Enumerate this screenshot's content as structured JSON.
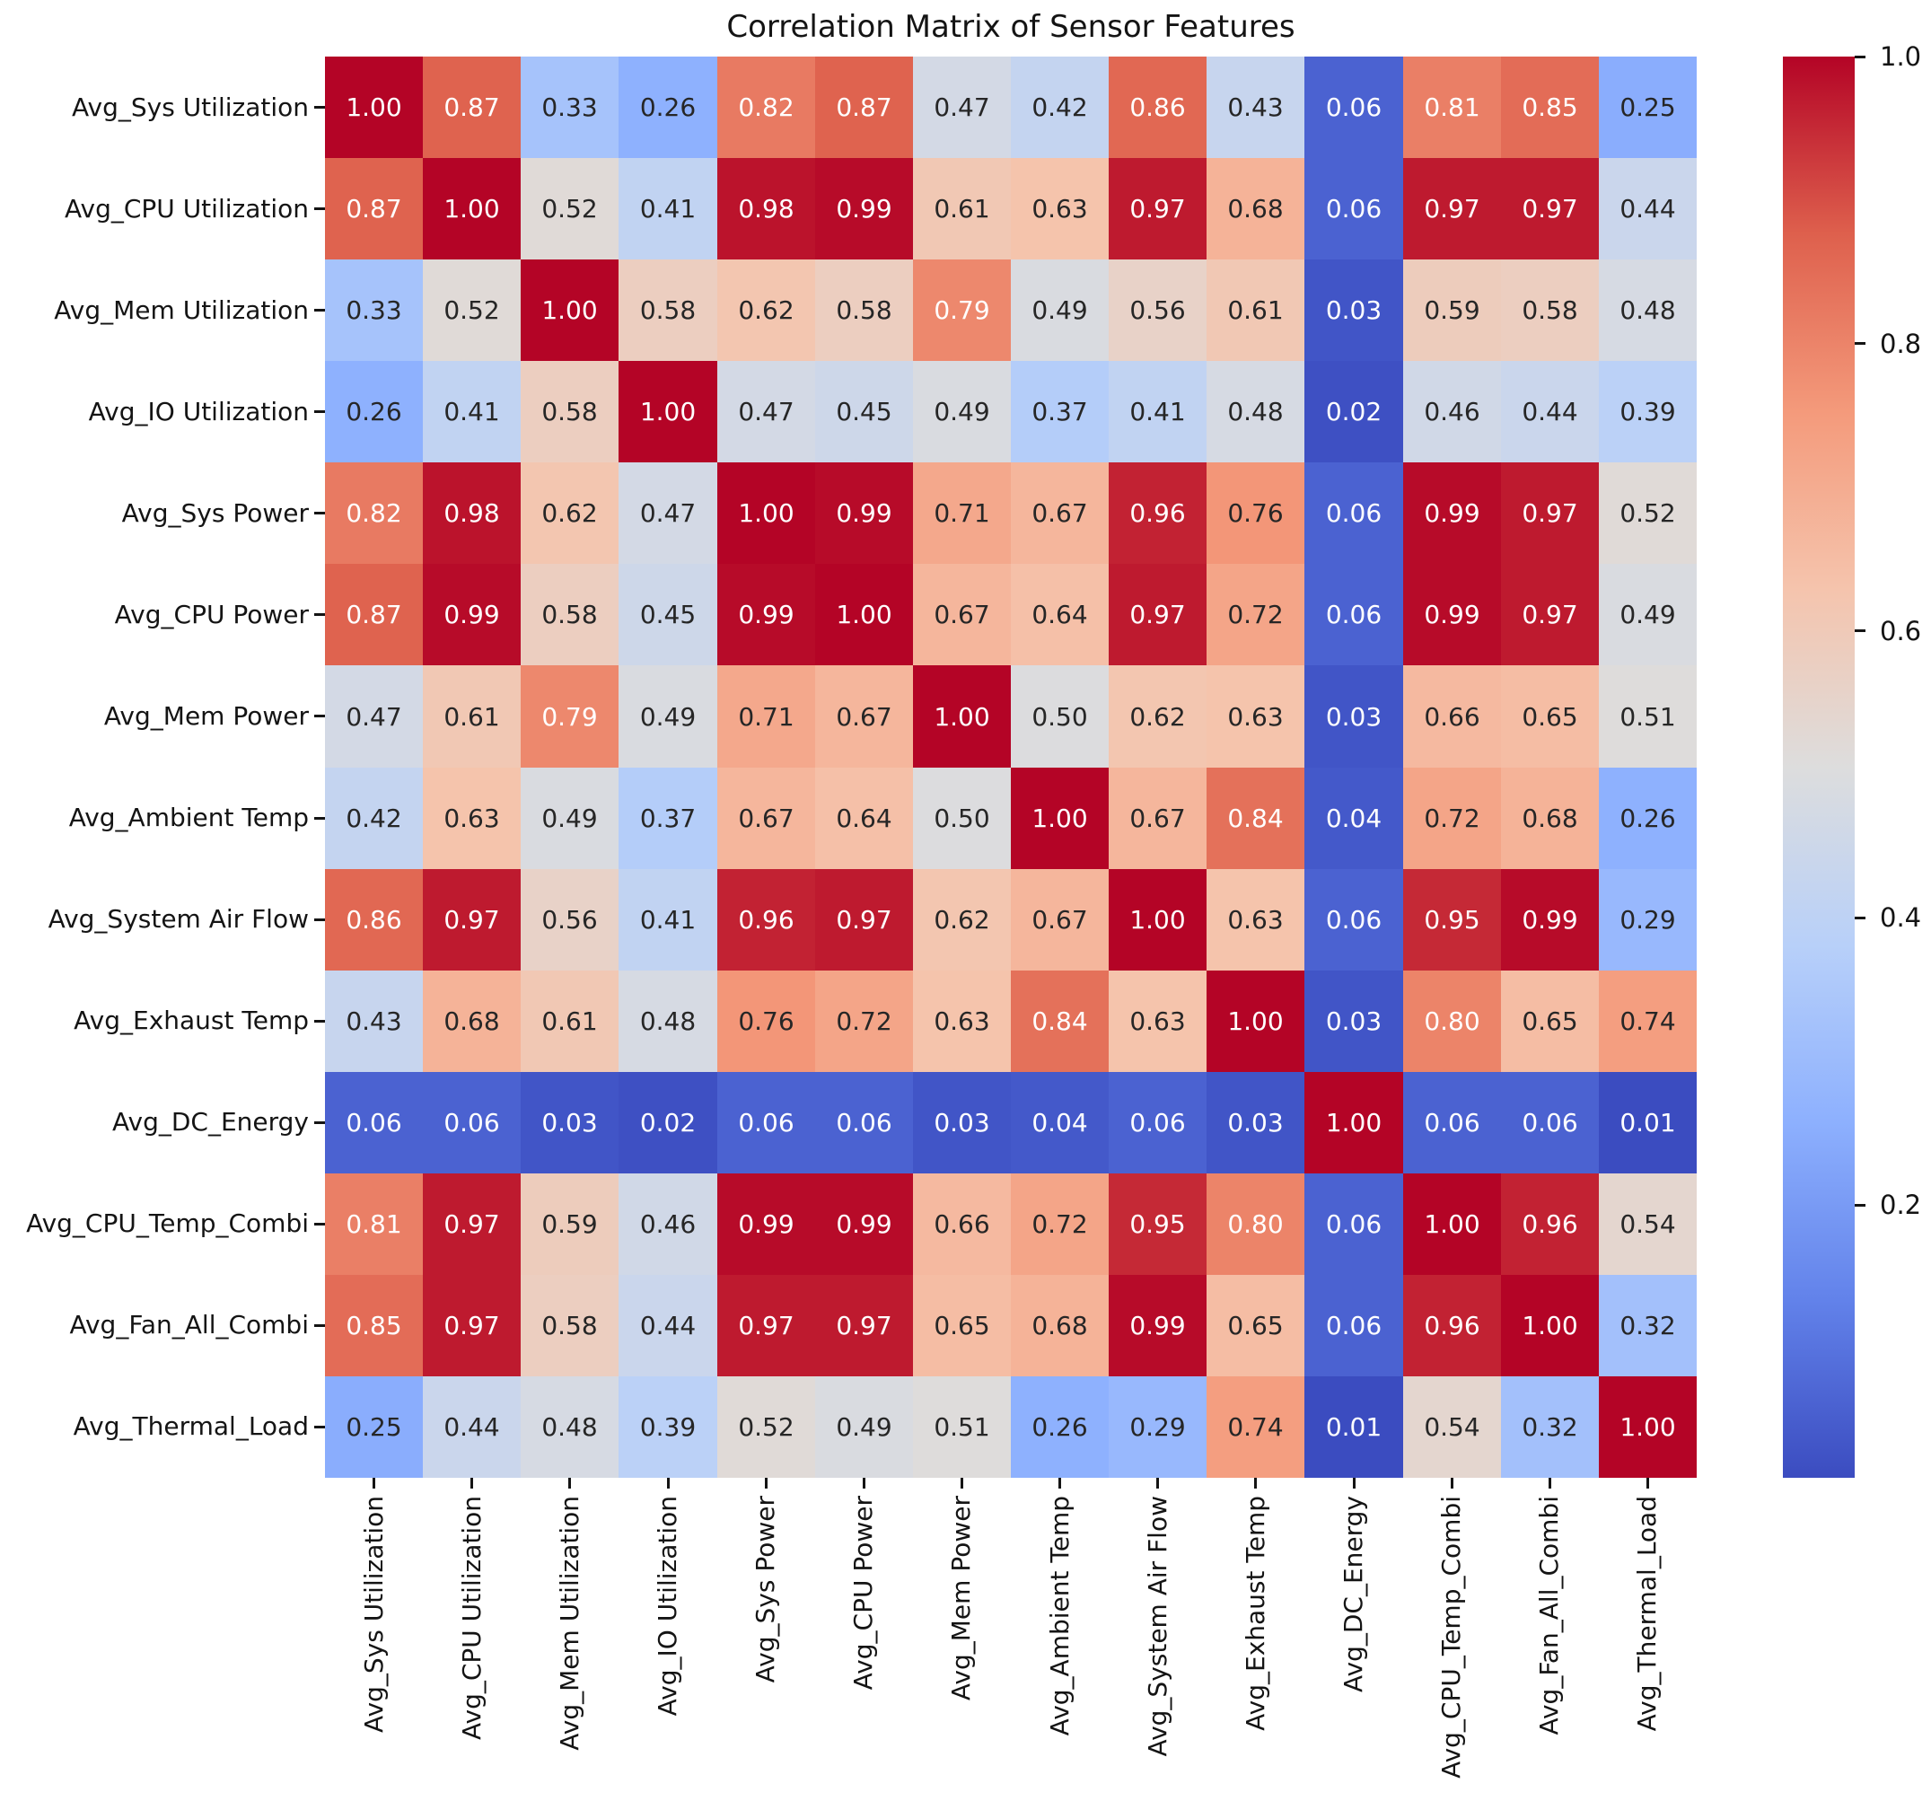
{
  "chart_data": {
    "type": "heatmap",
    "title": "Correlation Matrix of Sensor Features",
    "labels": [
      "Avg_Sys Utilization",
      "Avg_CPU Utilization",
      "Avg_Mem Utilization",
      "Avg_IO Utilization",
      "Avg_Sys Power",
      "Avg_CPU Power",
      "Avg_Mem Power",
      "Avg_Ambient Temp",
      "Avg_System Air Flow",
      "Avg_Exhaust Temp",
      "Avg_DC_Energy",
      "Avg_CPU_Temp_Combi",
      "Avg_Fan_All_Combi",
      "Avg_Thermal_Load"
    ],
    "matrix": [
      [
        1.0,
        0.87,
        0.33,
        0.26,
        0.82,
        0.87,
        0.47,
        0.42,
        0.86,
        0.43,
        0.06,
        0.81,
        0.85,
        0.25
      ],
      [
        0.87,
        1.0,
        0.52,
        0.41,
        0.98,
        0.99,
        0.61,
        0.63,
        0.97,
        0.68,
        0.06,
        0.97,
        0.97,
        0.44
      ],
      [
        0.33,
        0.52,
        1.0,
        0.58,
        0.62,
        0.58,
        0.79,
        0.49,
        0.56,
        0.61,
        0.03,
        0.59,
        0.58,
        0.48
      ],
      [
        0.26,
        0.41,
        0.58,
        1.0,
        0.47,
        0.45,
        0.49,
        0.37,
        0.41,
        0.48,
        0.02,
        0.46,
        0.44,
        0.39
      ],
      [
        0.82,
        0.98,
        0.62,
        0.47,
        1.0,
        0.99,
        0.71,
        0.67,
        0.96,
        0.76,
        0.06,
        0.99,
        0.97,
        0.52
      ],
      [
        0.87,
        0.99,
        0.58,
        0.45,
        0.99,
        1.0,
        0.67,
        0.64,
        0.97,
        0.72,
        0.06,
        0.99,
        0.97,
        0.49
      ],
      [
        0.47,
        0.61,
        0.79,
        0.49,
        0.71,
        0.67,
        1.0,
        0.5,
        0.62,
        0.63,
        0.03,
        0.66,
        0.65,
        0.51
      ],
      [
        0.42,
        0.63,
        0.49,
        0.37,
        0.67,
        0.64,
        0.5,
        1.0,
        0.67,
        0.84,
        0.04,
        0.72,
        0.68,
        0.26
      ],
      [
        0.86,
        0.97,
        0.56,
        0.41,
        0.96,
        0.97,
        0.62,
        0.67,
        1.0,
        0.63,
        0.06,
        0.95,
        0.99,
        0.29
      ],
      [
        0.43,
        0.68,
        0.61,
        0.48,
        0.76,
        0.72,
        0.63,
        0.84,
        0.63,
        1.0,
        0.03,
        0.8,
        0.65,
        0.74
      ],
      [
        0.06,
        0.06,
        0.03,
        0.02,
        0.06,
        0.06,
        0.03,
        0.04,
        0.06,
        0.03,
        1.0,
        0.06,
        0.06,
        0.01
      ],
      [
        0.81,
        0.97,
        0.59,
        0.46,
        0.99,
        0.99,
        0.66,
        0.72,
        0.95,
        0.8,
        0.06,
        1.0,
        0.96,
        0.54
      ],
      [
        0.85,
        0.97,
        0.58,
        0.44,
        0.97,
        0.97,
        0.65,
        0.68,
        0.99,
        0.65,
        0.06,
        0.96,
        1.0,
        0.32
      ],
      [
        0.25,
        0.44,
        0.48,
        0.39,
        0.52,
        0.49,
        0.51,
        0.26,
        0.29,
        0.74,
        0.01,
        0.54,
        0.32,
        1.0
      ]
    ],
    "annotation_decimals": 2,
    "vmin": 0.01,
    "vmax": 1.0,
    "colormap": "coolwarm",
    "colormap_stops": [
      "#3b4cc0",
      "#6282ea",
      "#8db0fe",
      "#b8d0f9",
      "#dddddd",
      "#f5c4ad",
      "#f49a7b",
      "#de604d",
      "#b40426"
    ],
    "annotation_colors": {
      "light": "#ffffff",
      "dark": "#262626"
    },
    "colorbar": {
      "position": "right",
      "ticks": [
        1.0,
        0.8,
        0.6,
        0.4,
        0.2
      ],
      "tick_labels": [
        "1.0",
        "0.8",
        "0.6",
        "0.4",
        "0.2"
      ]
    },
    "grid": false,
    "legend": false
  }
}
